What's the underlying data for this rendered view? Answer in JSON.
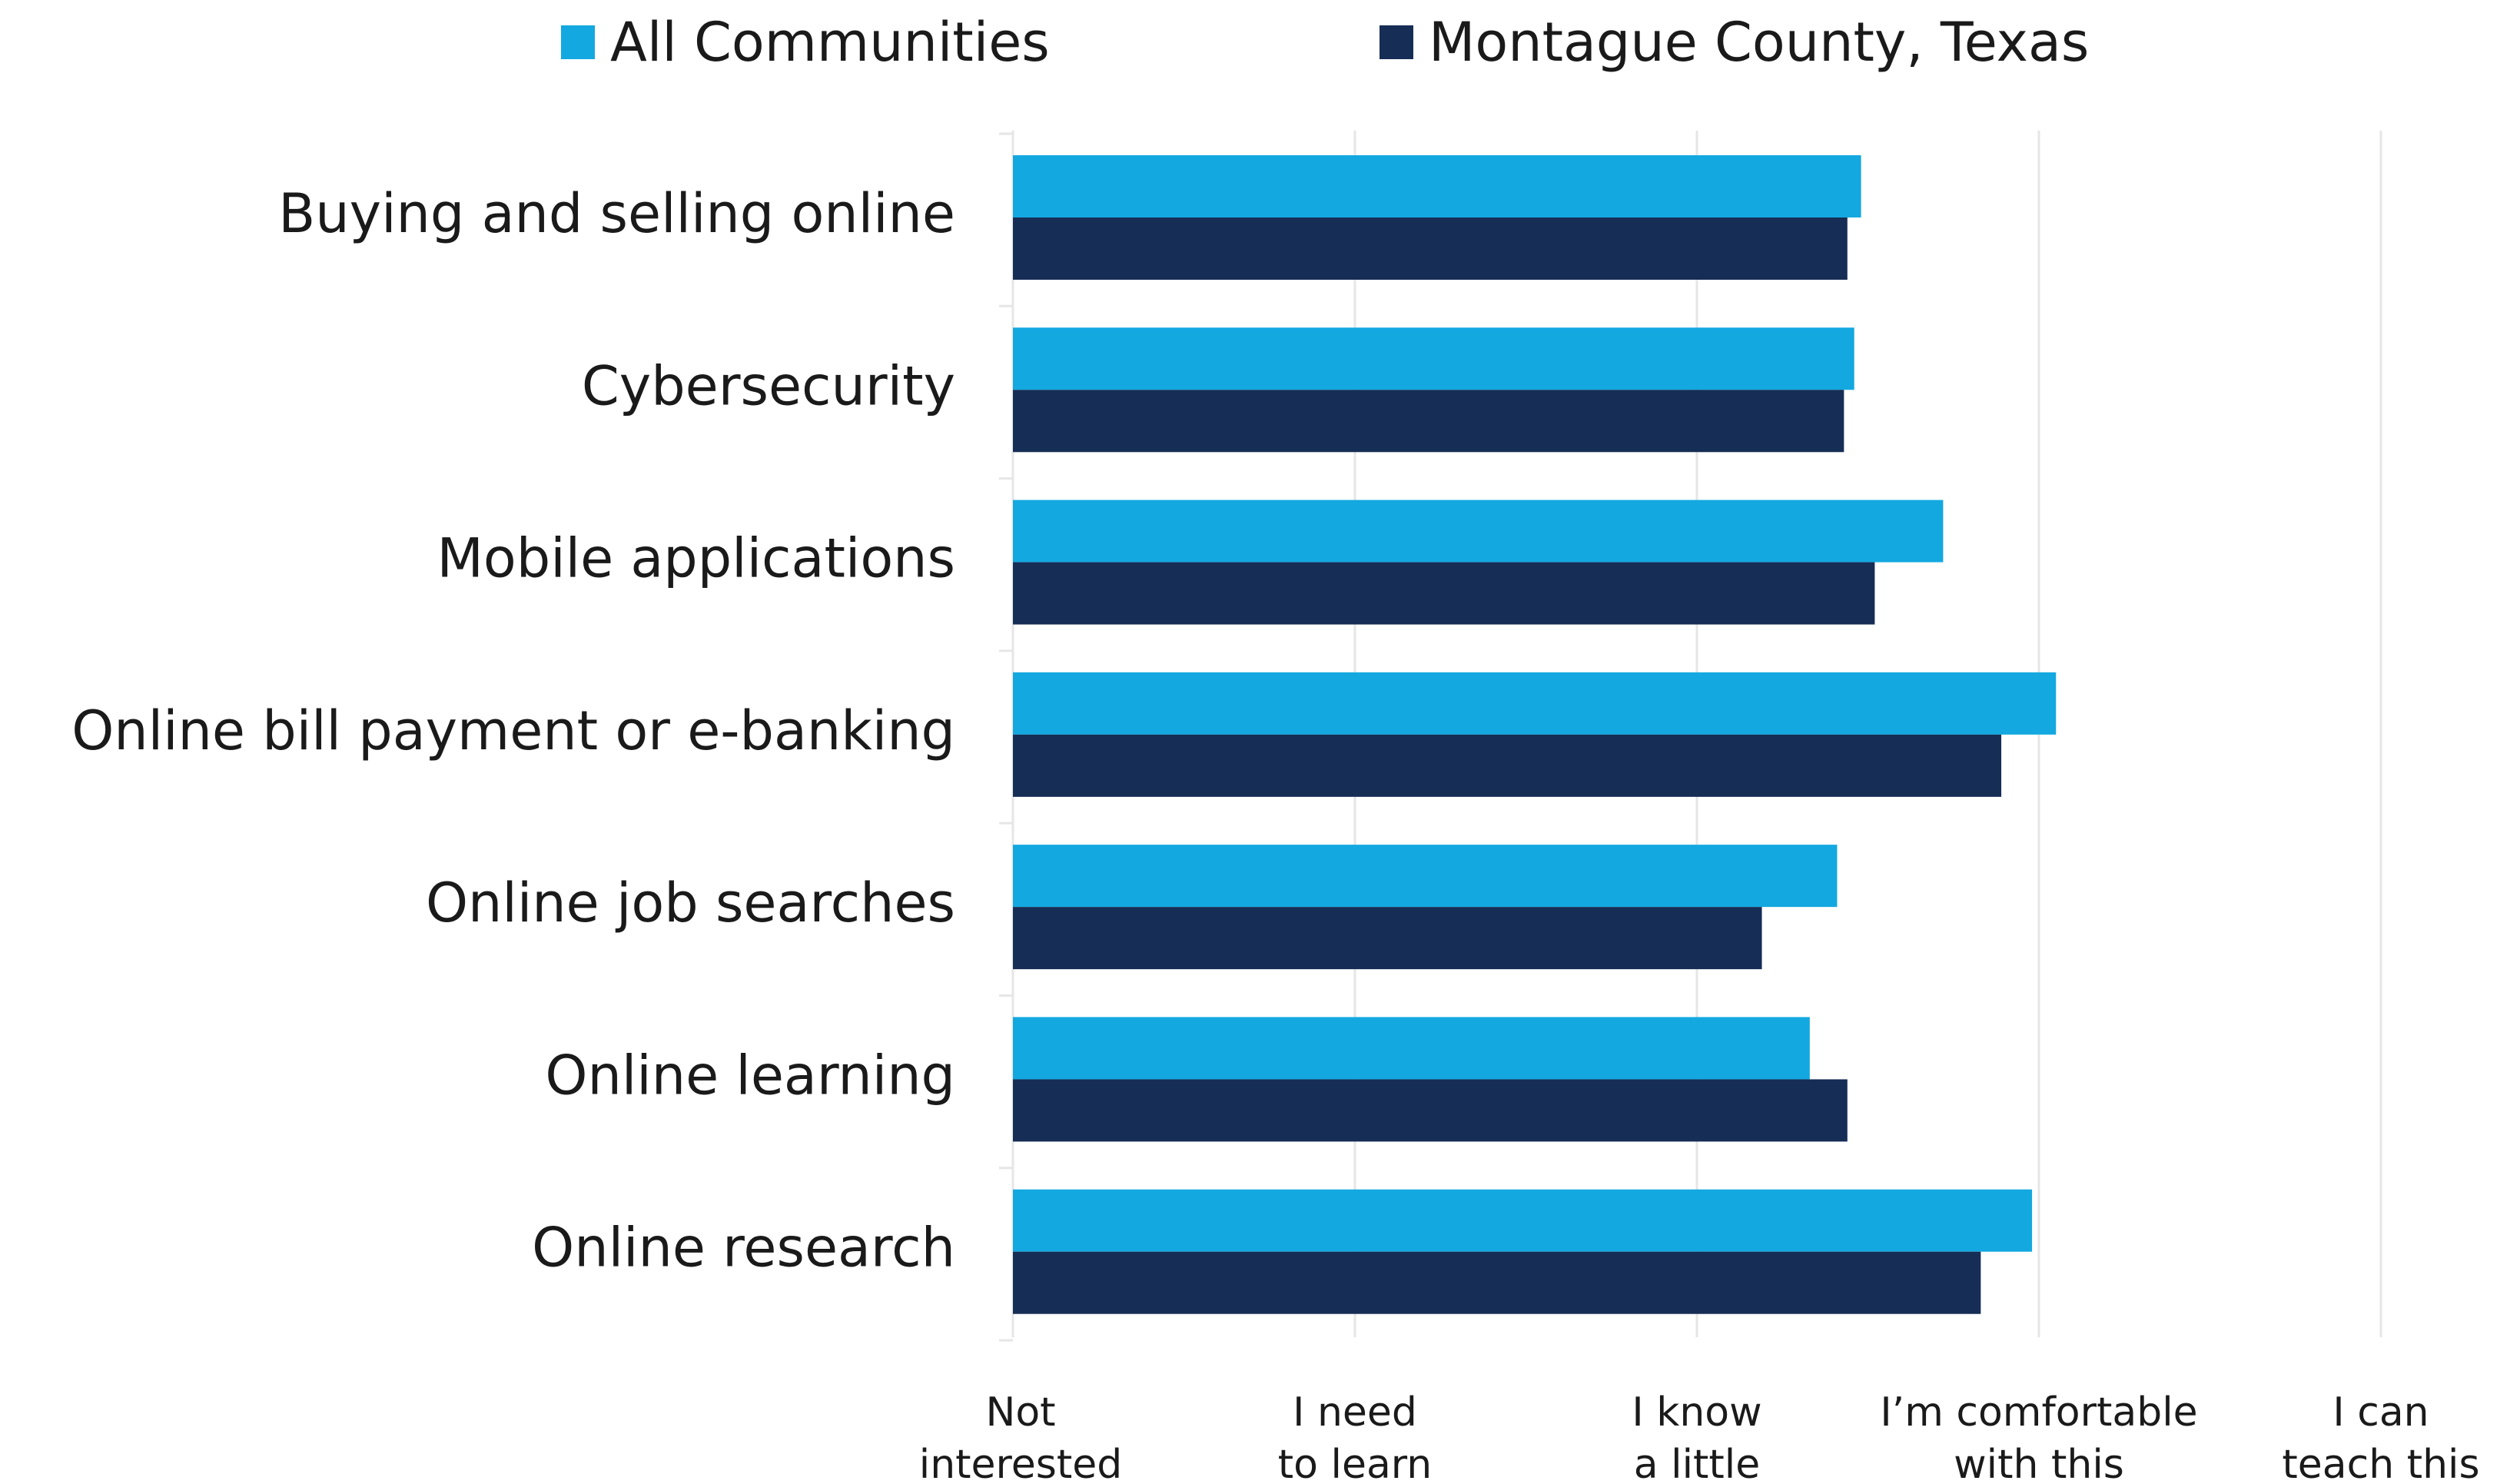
{
  "colors": {
    "all_communities": "#13A8E0",
    "montague_county": "#162D55",
    "grid": "#e6e6e6",
    "text": "#1a1a1a"
  },
  "legend": [
    {
      "label": "All Communities",
      "color": "#13A8E0"
    },
    {
      "label": "Montague County, Texas",
      "color": "#162D55"
    }
  ],
  "chart_data": {
    "type": "bar",
    "orientation": "horizontal",
    "title": "",
    "xlabel": "",
    "ylabel": "",
    "xlim": [
      0,
      4
    ],
    "grid": true,
    "legend_position": "top",
    "categories": [
      "Buying and selling online",
      "Cybersecurity",
      "Mobile applications",
      "Online bill payment or e-banking",
      "Online job searches",
      "Online learning",
      "Online research"
    ],
    "series": [
      {
        "name": "All Communities",
        "color": "#13A8E0",
        "values": [
          2.48,
          2.46,
          2.72,
          3.05,
          2.41,
          2.33,
          2.98
        ]
      },
      {
        "name": "Montague County, Texas",
        "color": "#162D55",
        "values": [
          2.44,
          2.43,
          2.52,
          2.89,
          2.19,
          2.44,
          2.83
        ]
      }
    ],
    "x_ticks": [
      {
        "value": 0,
        "lines": [
          "Not",
          "interested"
        ]
      },
      {
        "value": 1,
        "lines": [
          "I need",
          "to learn"
        ]
      },
      {
        "value": 2,
        "lines": [
          "I know",
          "a little"
        ]
      },
      {
        "value": 3,
        "lines": [
          "I’m comfortable",
          "with this"
        ]
      },
      {
        "value": 4,
        "lines": [
          "I can",
          "teach this"
        ]
      }
    ]
  }
}
